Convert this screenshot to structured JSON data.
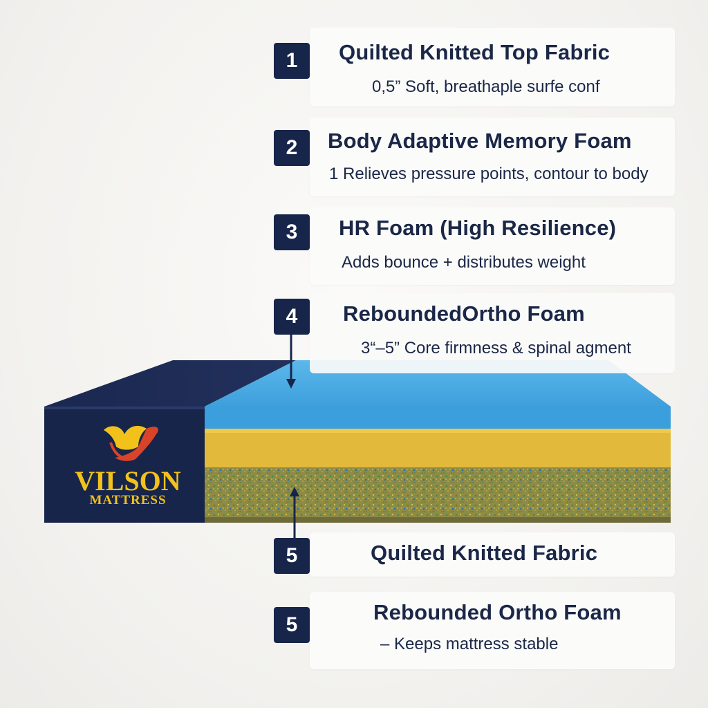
{
  "layers": [
    {
      "number": "1",
      "title": "Quilted Knitted Top Fabric",
      "description": "0,5” Soft, breathaple surfe conf"
    },
    {
      "number": "2",
      "title": "Body Adaptive Memory Foam",
      "description": "1 Relieves pressure points, contour to body"
    },
    {
      "number": "3",
      "title": "HR Foam (High Resilience)",
      "description": "Adds bounce + distributes weight"
    },
    {
      "number": "4",
      "title": "ReboundedOrtho Foam",
      "description": "3“–5”   Core firmness & spinal agment"
    },
    {
      "number": "5",
      "title": "Quilted Knitted Fabric",
      "description": ""
    },
    {
      "number": "5",
      "title": "Rebounded Ortho Foam",
      "description": "– Keeps mattress stable"
    }
  ],
  "brand": {
    "name": "VILSON",
    "subtitle": "MATTRESS"
  },
  "colors": {
    "navy": "#17254a",
    "blue_foam": "#3a9fdc",
    "yellow_foam": "#e3b93c",
    "ortho_foam": "#8a8a3e",
    "logo_gold": "#f2c21b",
    "logo_red": "#d8432a"
  }
}
